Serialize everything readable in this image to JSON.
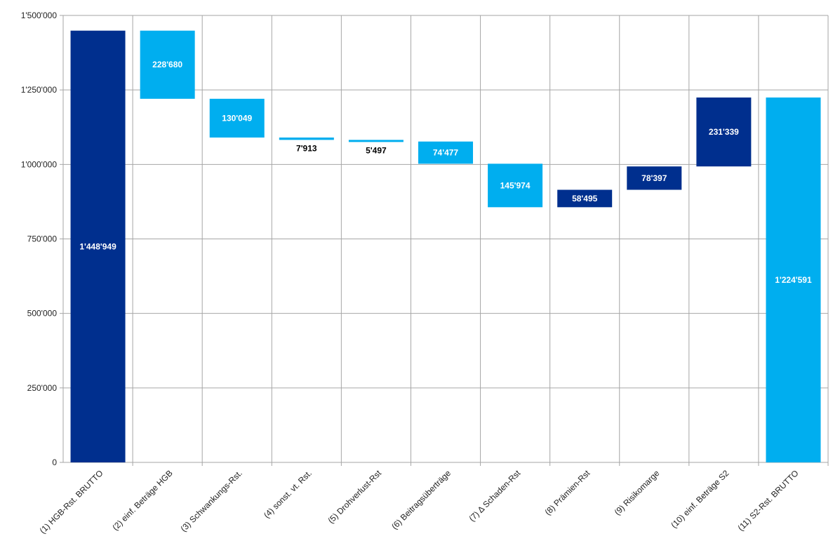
{
  "chart_data": {
    "type": "waterfall",
    "categories": [
      "(1) HGB-Rst. BRUTTO",
      "(2) einf. Beträge HGB",
      "(3) Schwankungs-Rst.",
      "(4) sonst. vt. Rst.",
      "(5) Drohverlust-Rst",
      "(6) Beitragsüberträge",
      "(7) Δ Schaden-Rst",
      "(8) Prämien-Rst",
      "(9) Risikomarge",
      "(10) einf. Beträge S2",
      "(11) S2-Rst. BRUTTO"
    ],
    "bars": [
      {
        "base": 0,
        "top": 1448949,
        "label": "1'448'949",
        "color": "#002f8e",
        "label_color": "#ffffff"
      },
      {
        "base": 1220269,
        "top": 1448949,
        "label": "228'680",
        "color": "#00aeef",
        "label_color": "#ffffff"
      },
      {
        "base": 1090220,
        "top": 1220269,
        "label": "130'049",
        "color": "#00aeef",
        "label_color": "#ffffff"
      },
      {
        "base": 1082307,
        "top": 1090220,
        "label": "7'913",
        "color": "#00aeef",
        "label_color": "#000000",
        "label_below": true
      },
      {
        "base": 1076810,
        "top": 1082307,
        "label": "5'497",
        "color": "#00aeef",
        "label_color": "#000000",
        "label_below": true
      },
      {
        "base": 1002333,
        "top": 1076810,
        "label": "74'477",
        "color": "#00aeef",
        "label_color": "#ffffff"
      },
      {
        "base": 856359,
        "top": 1002333,
        "label": "145'974",
        "color": "#00aeef",
        "label_color": "#ffffff"
      },
      {
        "base": 856359,
        "top": 914854,
        "label": "58'495",
        "color": "#002f8e",
        "label_color": "#ffffff"
      },
      {
        "base": 914854,
        "top": 993251,
        "label": "78'397",
        "color": "#002f8e",
        "label_color": "#ffffff"
      },
      {
        "base": 993251,
        "top": 1224591,
        "label": "231'339",
        "color": "#002f8e",
        "label_color": "#ffffff"
      },
      {
        "base": 0,
        "top": 1224591,
        "label": "1'224'591",
        "color": "#00aeef",
        "label_color": "#ffffff"
      }
    ],
    "ylim": [
      0,
      1500000
    ],
    "yticks": [
      0,
      250000,
      500000,
      750000,
      1000000,
      1250000,
      1500000
    ],
    "ytick_labels": [
      "0",
      "250'000",
      "500'000",
      "750'000",
      "1'000'000",
      "1'250'000",
      "1'500'000"
    ],
    "grid": true,
    "colors": {
      "dark": "#002f8e",
      "light": "#00aeef",
      "grid": "#a6a6a6"
    }
  }
}
